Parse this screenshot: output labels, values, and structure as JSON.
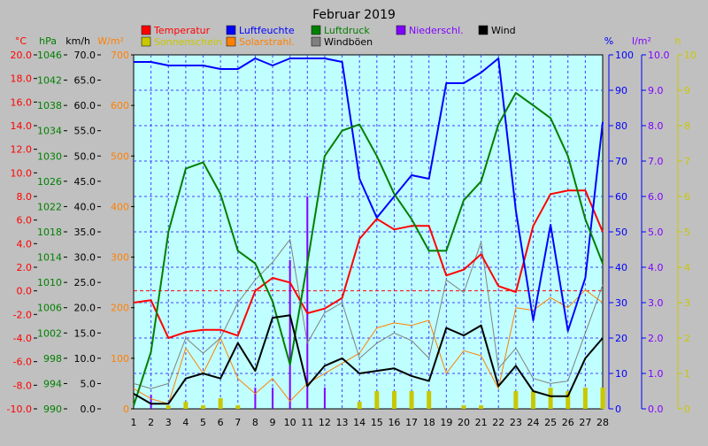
{
  "chart_data": {
    "type": "line",
    "title": "Februar 2019",
    "x": [
      1,
      2,
      3,
      4,
      5,
      6,
      7,
      8,
      9,
      10,
      11,
      12,
      13,
      14,
      15,
      16,
      17,
      18,
      19,
      20,
      21,
      22,
      23,
      24,
      25,
      26,
      27,
      28
    ],
    "x_ticks": [
      "1",
      "2",
      "3",
      "4",
      "5",
      "6",
      "7",
      "8",
      "9",
      "10",
      "11",
      "12",
      "13",
      "14",
      "15",
      "16",
      "17",
      "18",
      "19",
      "20",
      "21",
      "22",
      "23",
      "24",
      "25",
      "26",
      "27",
      "28"
    ],
    "grid": true,
    "legend_placement": "top",
    "axes": [
      {
        "id": "temp",
        "unit": "°C",
        "range": [
          -10,
          20
        ],
        "step": 2,
        "decimals": 1,
        "color": "#ff0000"
      },
      {
        "id": "press",
        "unit": "hPa",
        "range": [
          990,
          1046
        ],
        "step": 4,
        "decimals": 0,
        "color": "#008000"
      },
      {
        "id": "wind",
        "unit": "km/h",
        "range": [
          0,
          70
        ],
        "step": 5,
        "decimals": 1,
        "color": "#000000"
      },
      {
        "id": "rad",
        "unit": "W/m²",
        "range": [
          0,
          700
        ],
        "step": 100,
        "decimals": 0,
        "color": "#ff8000"
      },
      {
        "id": "hum",
        "unit": "%",
        "range": [
          0,
          100
        ],
        "step": 10,
        "decimals": 0,
        "color": "#0000ff"
      },
      {
        "id": "rain",
        "unit": "l/m²",
        "range": [
          0,
          10
        ],
        "step": 1,
        "decimals": 1,
        "color": "#8000ff"
      },
      {
        "id": "sun",
        "unit": "h",
        "range": [
          0,
          10
        ],
        "step": 1,
        "decimals": 0,
        "color": "#c8c800"
      }
    ],
    "series": [
      {
        "name": "Temperatur",
        "axis": "temp",
        "kind": "line",
        "color": "#ff0000",
        "width": 2,
        "values": [
          -1.0,
          -0.8,
          -4.0,
          -3.5,
          -3.3,
          -3.3,
          -3.8,
          0.0,
          1.1,
          0.7,
          -1.9,
          -1.5,
          -0.6,
          4.4,
          6.1,
          5.2,
          5.5,
          5.5,
          1.3,
          1.8,
          3.1,
          0.4,
          -0.1,
          5.5,
          8.2,
          8.5,
          8.5,
          5.0
        ]
      },
      {
        "name": "Luftfeuchte",
        "axis": "hum",
        "kind": "line",
        "color": "#0000ff",
        "width": 2,
        "values": [
          98,
          98,
          97,
          97,
          97,
          96,
          96,
          99,
          97,
          99,
          99,
          99,
          98,
          65,
          54,
          60,
          66,
          65,
          92,
          92,
          95,
          99,
          56,
          25,
          52,
          22,
          37,
          81
        ]
      },
      {
        "name": "Luftdruck",
        "axis": "press",
        "kind": "line",
        "color": "#008000",
        "width": 2,
        "values": [
          990.5,
          999,
          1018,
          1028,
          1029,
          1024,
          1015,
          1013,
          1007,
          997,
          1013,
          1030,
          1034,
          1035,
          1030,
          1024,
          1020,
          1015,
          1015,
          1023,
          1026,
          1035,
          1040,
          1038,
          1036,
          1030,
          1020,
          1013
        ]
      },
      {
        "name": "Niederschl.",
        "axis": "rain",
        "kind": "bar",
        "color": "#8000ff",
        "values": [
          0,
          0.4,
          0,
          0,
          0,
          0,
          0,
          0.6,
          0.6,
          4.2,
          6.0,
          0.6,
          0,
          0,
          0,
          0,
          0,
          0,
          0,
          0,
          0,
          0,
          0,
          0,
          0,
          0,
          0,
          0
        ]
      },
      {
        "name": "Wind",
        "axis": "wind",
        "kind": "line",
        "color": "#000000",
        "width": 2,
        "values": [
          3,
          1,
          1,
          6,
          7,
          6,
          13,
          7.5,
          18,
          18.5,
          4.5,
          8.5,
          10,
          7,
          7.5,
          8,
          6.5,
          5.5,
          16,
          14.5,
          16.5,
          4.5,
          8.5,
          3.5,
          2.5,
          2.5,
          10,
          14
        ]
      },
      {
        "name": "Sonnenschein",
        "axis": "sun",
        "kind": "bar",
        "color": "#c8c800",
        "values": [
          0,
          0,
          0.1,
          0.2,
          0.1,
          0.3,
          0.1,
          0,
          0,
          0,
          0,
          0,
          0,
          0.2,
          0.5,
          0.5,
          0.5,
          0.5,
          0,
          0.1,
          0.1,
          0,
          0.5,
          0.5,
          0.6,
          0.5,
          0.6,
          0.6
        ]
      },
      {
        "name": "Solarstrahl.",
        "axis": "rad",
        "kind": "line",
        "color": "#ff8000",
        "width": 1,
        "values": [
          40,
          20,
          10,
          120,
          70,
          140,
          60,
          30,
          60,
          15,
          50,
          70,
          90,
          110,
          160,
          170,
          165,
          175,
          70,
          115,
          105,
          40,
          200,
          195,
          220,
          200,
          235,
          210
        ]
      },
      {
        "name": "Windböen",
        "axis": "wind",
        "kind": "line",
        "color": "#808080",
        "width": 1,
        "values": [
          5,
          4,
          5,
          14,
          11,
          14,
          21,
          25.5,
          29,
          33.5,
          13,
          19,
          21,
          10,
          13,
          15,
          13.5,
          10,
          25.5,
          23,
          33,
          8,
          12,
          6,
          5,
          5.5,
          15,
          24.5
        ]
      }
    ],
    "ref_line": {
      "axis": "temp",
      "value": 0,
      "color": "#ff0000"
    }
  }
}
